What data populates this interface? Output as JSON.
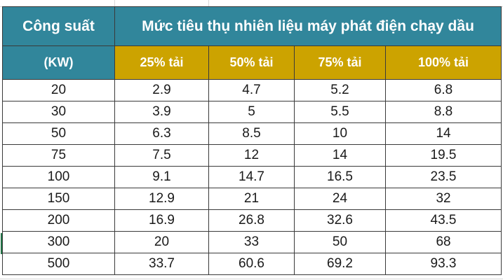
{
  "table": {
    "header": {
      "col0_line1": "Công suất",
      "col0_line2": "(KW)",
      "group_title": "Mức tiêu thụ nhiên liệu máy phát điện chạy dầu",
      "load_columns": [
        "25% tải",
        "50% tải",
        "75% tải",
        "100% tải"
      ]
    },
    "rows": [
      [
        "20",
        "2.9",
        "4.7",
        "5.2",
        "6.8"
      ],
      [
        "30",
        "3.9",
        "5",
        "5.5",
        "8.8"
      ],
      [
        "50",
        "6.3",
        "8.5",
        "10",
        "14"
      ],
      [
        "75",
        "7.5",
        "12",
        "14",
        "19.5"
      ],
      [
        "100",
        "9.1",
        "14.7",
        "16.5",
        "23.5"
      ],
      [
        "150",
        "12.9",
        "21",
        "24",
        "32"
      ],
      [
        "200",
        "16.9",
        "26.8",
        "32.6",
        "43.5"
      ],
      [
        "300",
        "20",
        "33",
        "50",
        "68"
      ],
      [
        "500",
        "33.7",
        "60.6",
        "69.2",
        "93.3"
      ]
    ]
  },
  "colors": {
    "header_teal": "#31869b",
    "header_gold": "#cca300",
    "header_text": "#ffffff"
  }
}
